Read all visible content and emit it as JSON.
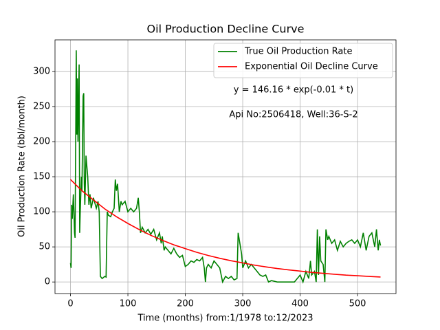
{
  "chart_data": {
    "type": "line",
    "title": "Oil Production Decline Curve",
    "xlabel": "Time (months) from:1/1978 to:12/2023",
    "ylabel": "Oil Production Rate (bbl/month)",
    "annotations": [
      "y = 146.16 * exp(-0.01 * t)",
      "Api No:2506418, Well:36-S-2"
    ],
    "xlim": [
      -27,
      567
    ],
    "ylim": [
      -16.5,
      345
    ],
    "xticks": [
      0,
      100,
      200,
      300,
      400,
      500
    ],
    "yticks": [
      0,
      50,
      100,
      150,
      200,
      250,
      300
    ],
    "grid": true,
    "legend": "upper right",
    "series": [
      {
        "name": "True Oil Production Rate",
        "color": "#008000",
        "x": [
          0,
          1,
          2,
          3,
          5,
          7,
          8,
          10,
          11,
          12,
          13,
          15,
          16,
          17,
          19,
          20,
          22,
          23,
          24,
          25,
          27,
          28,
          30,
          32,
          34,
          36,
          40,
          45,
          48,
          50,
          52,
          55,
          60,
          62,
          64,
          66,
          70,
          73,
          76,
          78,
          80,
          82,
          85,
          88,
          90,
          95,
          100,
          105,
          110,
          115,
          118,
          120,
          122,
          125,
          130,
          135,
          140,
          145,
          150,
          155,
          158,
          160,
          163,
          165,
          170,
          175,
          180,
          185,
          190,
          195,
          200,
          205,
          210,
          215,
          220,
          225,
          230,
          233,
          235,
          237,
          240,
          245,
          250,
          255,
          260,
          265,
          270,
          275,
          280,
          285,
          290,
          292,
          295,
          298,
          300,
          305,
          310,
          315,
          320,
          325,
          330,
          335,
          340,
          345,
          350,
          360,
          370,
          380,
          390,
          395,
          400,
          405,
          410,
          415,
          418,
          420,
          425,
          428,
          430,
          432,
          434,
          436,
          440,
          443,
          445,
          448,
          450,
          455,
          460,
          465,
          470,
          475,
          480,
          485,
          490,
          495,
          500,
          505,
          510,
          515,
          520,
          525,
          530,
          533,
          536,
          538,
          540
        ],
        "values": [
          27,
          20,
          110,
          90,
          125,
          70,
          63,
          330,
          210,
          290,
          200,
          310,
          70,
          100,
          150,
          130,
          265,
          269,
          140,
          110,
          180,
          170,
          150,
          110,
          125,
          105,
          120,
          105,
          115,
          100,
          8,
          5,
          8,
          7,
          100,
          95,
          93,
          100,
          105,
          146,
          130,
          140,
          100,
          115,
          110,
          115,
          100,
          105,
          100,
          105,
          120,
          100,
          70,
          78,
          70,
          75,
          68,
          75,
          60,
          70,
          55,
          65,
          45,
          50,
          45,
          40,
          48,
          40,
          35,
          38,
          22,
          25,
          30,
          28,
          32,
          30,
          35,
          20,
          0,
          20,
          25,
          20,
          30,
          25,
          20,
          0,
          8,
          5,
          8,
          3,
          5,
          70,
          55,
          40,
          20,
          30,
          20,
          25,
          20,
          15,
          10,
          8,
          10,
          0,
          2,
          0,
          0,
          0,
          0,
          5,
          10,
          0,
          15,
          5,
          30,
          10,
          15,
          0,
          75,
          10,
          65,
          30,
          25,
          0,
          75,
          60,
          65,
          55,
          60,
          45,
          58,
          50,
          55,
          58,
          60,
          55,
          60,
          50,
          70,
          45,
          65,
          70,
          50,
          75,
          45,
          60,
          52
        ]
      },
      {
        "name": "Exponential Oil Decline Curve",
        "color": "#ff0000",
        "x": [
          0,
          20,
          40,
          60,
          80,
          100,
          120,
          140,
          160,
          180,
          200,
          220,
          240,
          260,
          280,
          300,
          320,
          340,
          360,
          380,
          400,
          420,
          440,
          460,
          480,
          500,
          520,
          540
        ],
        "values": [
          146,
          130,
          117,
          104,
          93,
          83.4,
          74.5,
          66.5,
          59.4,
          53,
          47.6,
          42.3,
          37.8,
          33.8,
          30.2,
          27.2,
          24.1,
          21.5,
          19.2,
          17.2,
          15.5,
          13.7,
          12.3,
          11,
          9.8,
          8.9,
          7.9,
          7.1
        ]
      }
    ]
  }
}
